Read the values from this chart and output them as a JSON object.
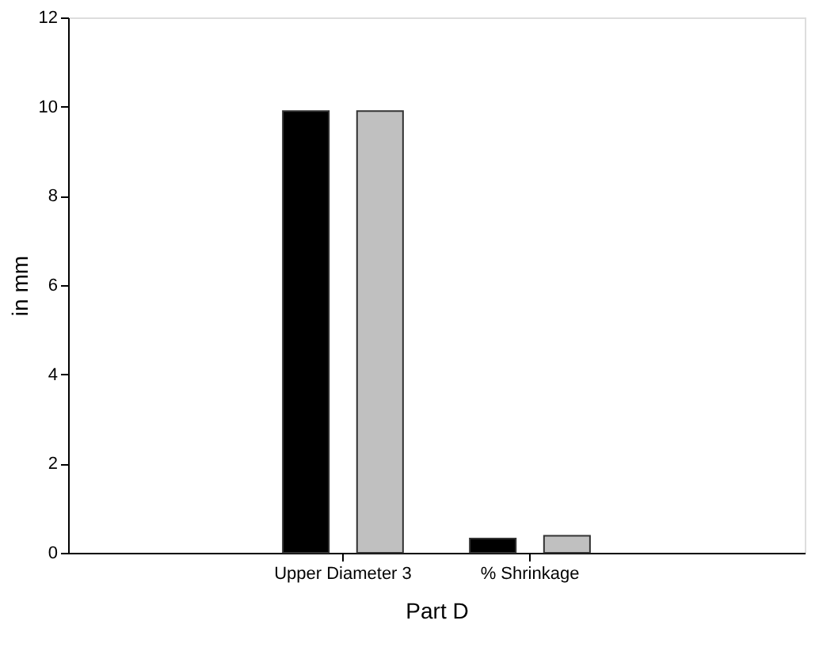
{
  "chart_data": {
    "type": "bar",
    "xlabel": "Part D",
    "ylabel": "in mm",
    "categories": [
      "Upper Diameter 3",
      "% Shrinkage"
    ],
    "series": [
      {
        "color": "#000000",
        "values": [
          9.9,
          0.32
        ]
      },
      {
        "color": "#c0c0c0",
        "values": [
          9.9,
          0.38
        ]
      }
    ],
    "ylim": [
      0,
      12
    ],
    "yticks": [
      0,
      2,
      4,
      6,
      8,
      10,
      12
    ],
    "grid": false,
    "legend": false
  }
}
